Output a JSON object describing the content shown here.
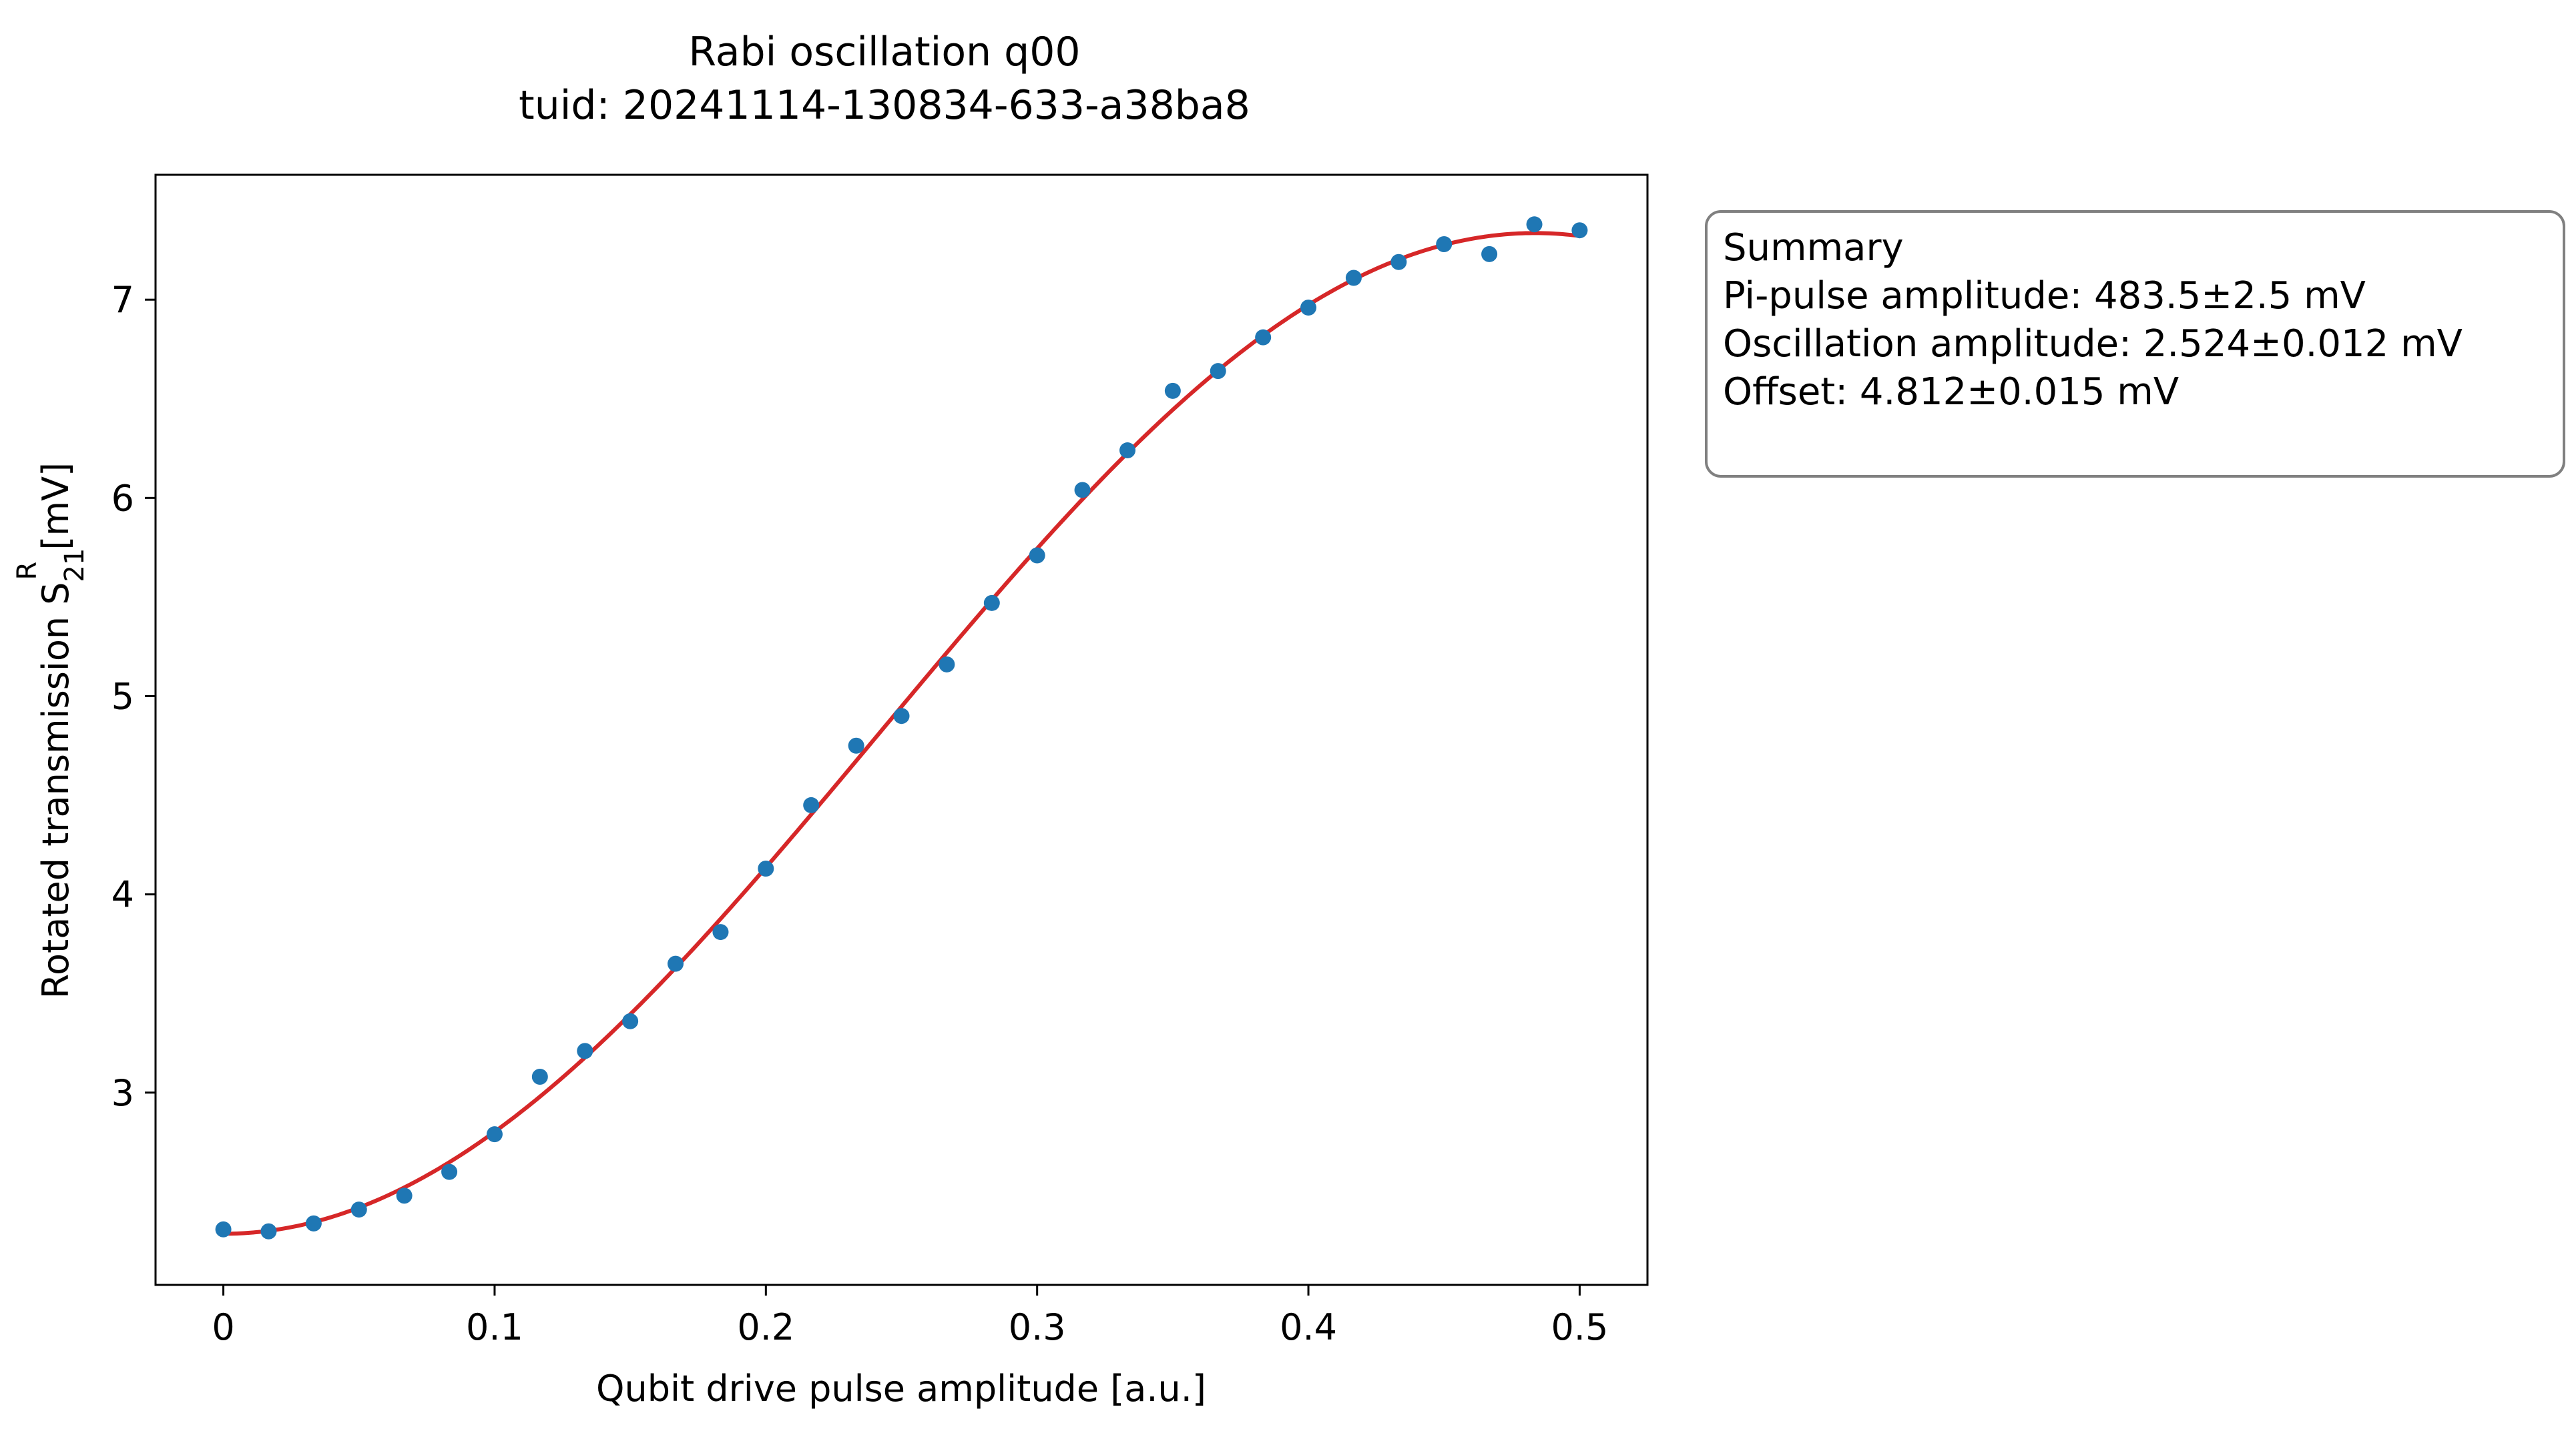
{
  "chart_data": {
    "type": "scatter",
    "title": "Rabi oscillation q00",
    "subtitle": "tuid: 20241114-130834-633-a38ba8",
    "xlabel": "Qubit drive pulse amplitude [a.u.]",
    "ylabel_main": "Rotated transmission S",
    "ylabel_sub": "21",
    "ylabel_sup": "R",
    "ylabel_unit": " [mV]",
    "xlim": [
      -0.025,
      0.525
    ],
    "ylim": [
      2.03,
      7.63
    ],
    "grid": false,
    "x_ticks": [
      {
        "value": 0,
        "label": "0"
      },
      {
        "value": 0.1,
        "label": "0.1"
      },
      {
        "value": 0.2,
        "label": "0.2"
      },
      {
        "value": 0.3,
        "label": "0.3"
      },
      {
        "value": 0.4,
        "label": "0.4"
      },
      {
        "value": 0.5,
        "label": "0.5"
      }
    ],
    "y_ticks": [
      {
        "value": 3,
        "label": "3"
      },
      {
        "value": 4,
        "label": "4"
      },
      {
        "value": 5,
        "label": "5"
      },
      {
        "value": 6,
        "label": "6"
      },
      {
        "value": 7,
        "label": "7"
      }
    ],
    "series": [
      {
        "type": "scatter",
        "color": "#1f77b4",
        "x": [
          0,
          0.0167,
          0.0333,
          0.05,
          0.0667,
          0.0833,
          0.1,
          0.1167,
          0.1333,
          0.15,
          0.1667,
          0.1833,
          0.2,
          0.2167,
          0.2333,
          0.25,
          0.2667,
          0.2833,
          0.3,
          0.3167,
          0.3333,
          0.35,
          0.3667,
          0.3833,
          0.4,
          0.4167,
          0.4333,
          0.45,
          0.4667,
          0.4833,
          0.5
        ],
        "y": [
          2.31,
          2.3,
          2.34,
          2.41,
          2.48,
          2.6,
          2.79,
          3.08,
          3.21,
          3.36,
          3.65,
          3.81,
          4.13,
          4.45,
          4.75,
          4.9,
          5.16,
          5.47,
          5.71,
          6.04,
          6.24,
          6.54,
          6.64,
          6.81,
          6.96,
          7.11,
          7.19,
          7.28,
          7.23,
          7.38,
          7.35
        ]
      },
      {
        "type": "line",
        "color": "#d62728",
        "fit": {
          "model": "offset - amplitude*cos(pi*x/pi_amp)",
          "offset": 4.812,
          "amplitude": 2.524,
          "pi_amp": 0.4835,
          "x_range": [
            0,
            0.5
          ]
        }
      }
    ]
  },
  "summary": {
    "heading": "Summary",
    "lines": [
      "Pi-pulse amplitude: 483.5±2.5 mV",
      "Oscillation amplitude: 2.524±0.012 mV",
      "Offset: 4.812±0.015 mV"
    ]
  }
}
